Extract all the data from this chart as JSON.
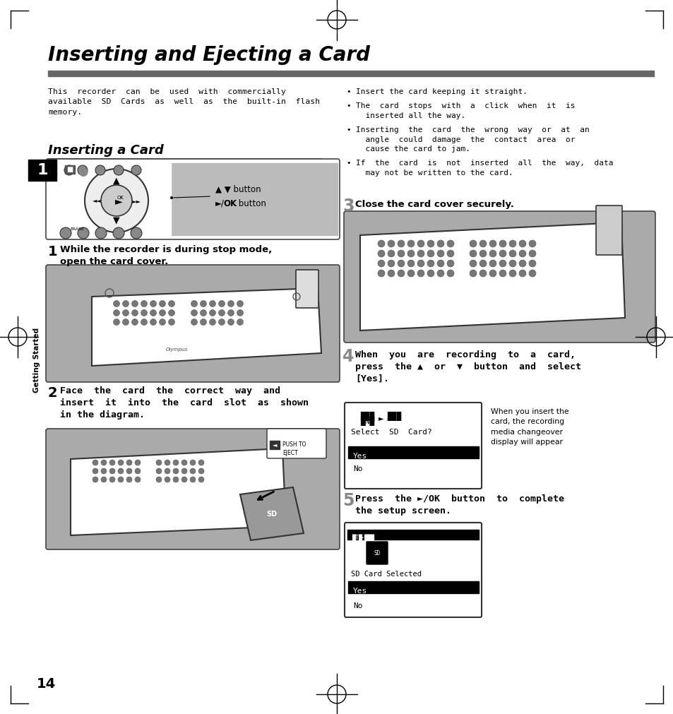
{
  "title": "Inserting and Ejecting a Card",
  "subtitle_section": "Inserting a Card",
  "bg_color": "#ffffff",
  "title_color": "#000000",
  "header_bar_color": "#666666",
  "left_tab_bg": "#000000",
  "left_tab_text": "1",
  "left_tab_text_color": "#ffffff",
  "sidebar_text": "Getting Started",
  "page_number": "14",
  "intro_text_left": "This  recorder  can  be  used  with  commercially\navailable  SD  Cards  as  well  as  the  built-in  flash\nmemory.",
  "bullet1": "Insert the card keeping it straight.",
  "bullet2": "The  card  stops  with  a  click  when  it  is\n  inserted all the way.",
  "bullet3": "Inserting  the  card  the  wrong  way  or  at  an\n  angle  could  damage  the  contact  area  or\n  cause the card to jam.",
  "bullet4": "If  the  card  is  not  inserted  all  the  way,  data\n  may not be written to the card.",
  "step1_text": "While the recorder is during stop mode,\nopen the card cover.",
  "step2_text": "Face  the  card  the  correct  way  and\ninsert  it  into  the  card  slot  as  shown\nin the diagram.",
  "step3_text": "Close the card cover securely.",
  "step4_text": "When  you  are  recording  to  a  card,\npress  the ▲  or  ▼  button  and  select\n[Yes].",
  "step5_text": "Press  the ►/OK  button  to  complete\nthe setup screen.",
  "step4_note": "When you insert the\ncard, the recording\nmedia changeover\ndisplay will appear",
  "img_gray": "#aaaaaa",
  "img_light": "#cccccc",
  "screen_highlight": "#111111",
  "callout_arrow_label1": "▲ ▼ button",
  "callout_arrow_label2": "►/OK button"
}
